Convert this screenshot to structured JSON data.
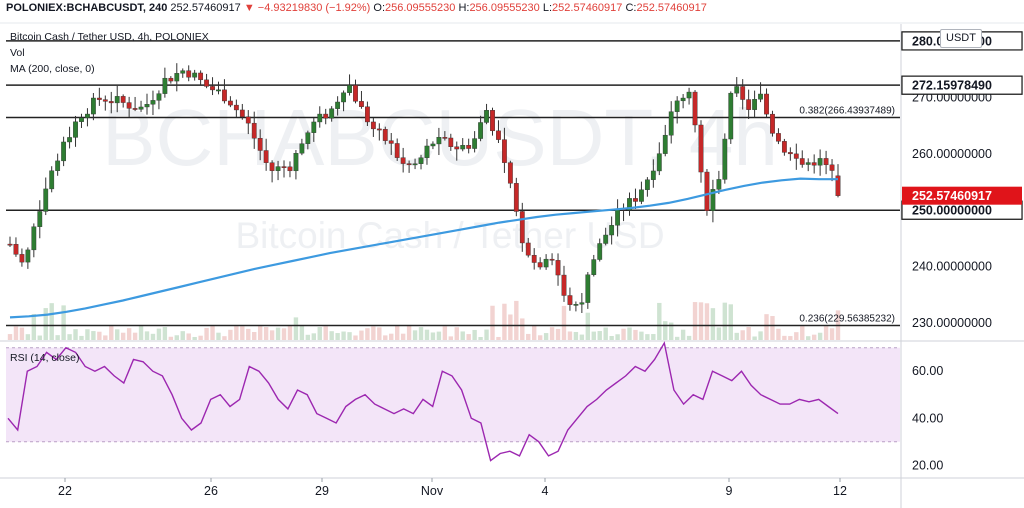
{
  "header": {
    "symbol": "POLONIEX:BCHABCUSDT, 240",
    "last": "252.57460917",
    "change": "▼ −4.93219830 (−1.92%)",
    "o_label": "O:",
    "o": "256.09555230",
    "h_label": "H:",
    "h": "256.09555230",
    "l_label": "L:",
    "l": "252.57460917",
    "c_label": "C:",
    "c": "252.57460917",
    "pair_line": "Bitcoin Cash / Tether USD, 4h, POLONIEX",
    "vol_label": "Vol",
    "ma_label": "MA (200, close, 0)",
    "rsi_label": "RSI (14, close)"
  },
  "watermark": {
    "symbol": "BCHABCUSDT, 4h",
    "name": "Bitcoin Cash / Tether USD"
  },
  "currency_button": "USDT",
  "colors": {
    "up": "#2e7d32",
    "down": "#c62828",
    "ma": "#3d9ae0",
    "rsi": "#9c27b0",
    "rsi_band": "#f3e5f8",
    "last_price_bg": "#e0141a",
    "line": "#222222"
  },
  "chart_data": [
    {
      "type": "candlestick",
      "title": "Bitcoin Cash / Tether USD, 4h, POLONIEX",
      "price_axis_labels": [
        "280.00000000",
        "270.00000000",
        "260.00000000",
        "250.00000000",
        "240.00000000",
        "230.00000000"
      ],
      "x_tick_labels": [
        "22",
        "26",
        "29",
        "Nov",
        "4",
        "9",
        "12"
      ],
      "ylim": [
        227,
        283
      ],
      "horizontal_levels": [
        {
          "value": 280.0,
          "label": "280.00000000"
        },
        {
          "value": 272.1597849,
          "label": "272.15978490"
        },
        {
          "value": 266.43937489,
          "label": "0.382(266.43937489)"
        },
        {
          "value": 250.0,
          "label": "250.00000000"
        },
        {
          "value": 229.56385232,
          "label": "0.236(229.56385232)"
        }
      ],
      "last_price": {
        "value": 252.57460917,
        "label": "252.57460917"
      },
      "ma_200": [
        231,
        231.2,
        231.5,
        232,
        232.6,
        233.3,
        234,
        234.8,
        235.6,
        236.4,
        237.2,
        238,
        238.8,
        239.6,
        240.3,
        241,
        241.7,
        242.4,
        243,
        243.6,
        244.2,
        244.8,
        245.4,
        246,
        246.6,
        247.2,
        247.8,
        248.3,
        248.8,
        249.2,
        249.5,
        249.8,
        250.1,
        250.4,
        250.8,
        251.3,
        252,
        252.8,
        253.6,
        254.3,
        254.9,
        255.3,
        255.6,
        255.5,
        255.5
      ]
    },
    {
      "type": "line",
      "title": "RSI (14, close)",
      "y_tick_labels": [
        "60.00",
        "40.00",
        "20.00"
      ],
      "ylim": [
        18,
        72
      ],
      "band": [
        30,
        70
      ],
      "values": [
        40,
        35,
        60,
        62,
        68,
        65,
        70,
        68,
        62,
        60,
        62,
        58,
        55,
        65,
        64,
        60,
        58,
        50,
        40,
        35,
        38,
        48,
        50,
        45,
        48,
        62,
        60,
        55,
        48,
        44,
        52,
        50,
        42,
        40,
        38,
        45,
        48,
        50,
        46,
        44,
        42,
        44,
        42,
        48,
        45,
        60,
        58,
        52,
        40,
        38,
        22,
        25,
        26,
        24,
        33,
        30,
        24,
        26,
        35,
        40,
        45,
        48,
        52,
        55,
        58,
        62,
        60,
        65,
        72,
        52,
        46,
        50,
        48,
        60,
        58,
        56,
        60,
        54,
        50,
        48,
        46,
        46,
        48,
        47,
        48,
        45,
        42
      ]
    }
  ]
}
